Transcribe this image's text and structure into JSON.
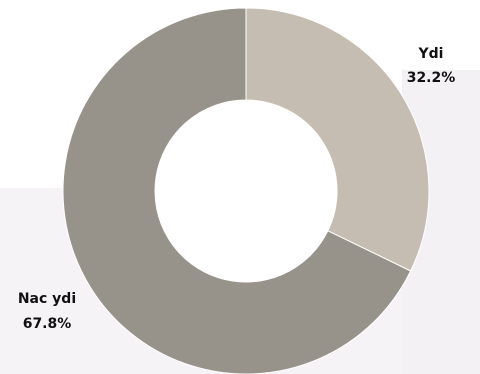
{
  "chart_data": {
    "type": "pie",
    "donut": true,
    "slices": [
      {
        "label": "Ydi",
        "value": 32.2,
        "value_label": "32.2%",
        "color": "#c5bdb2"
      },
      {
        "label": "Nac ydi",
        "value": 67.8,
        "value_label": "67.8%",
        "color": "#97938a"
      }
    ],
    "legend": "none"
  }
}
